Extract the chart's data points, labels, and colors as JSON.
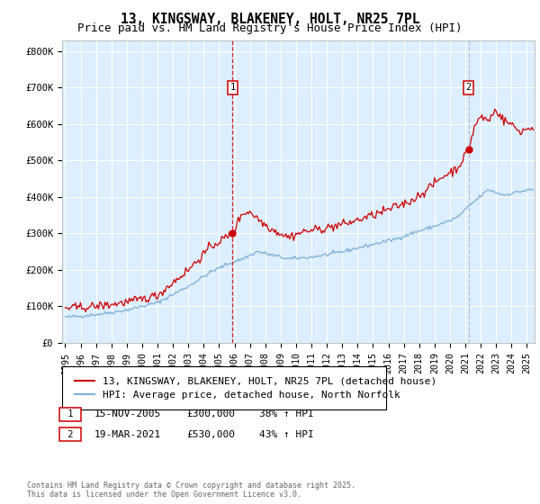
{
  "title": "13, KINGSWAY, BLAKENEY, HOLT, NR25 7PL",
  "subtitle": "Price paid vs. HM Land Registry's House Price Index (HPI)",
  "ylabel_ticks": [
    "£0",
    "£100K",
    "£200K",
    "£300K",
    "£400K",
    "£500K",
    "£600K",
    "£700K",
    "£800K"
  ],
  "ytick_values": [
    0,
    100000,
    200000,
    300000,
    400000,
    500000,
    600000,
    700000,
    800000
  ],
  "ylim": [
    0,
    830000
  ],
  "xlim_start": 1994.8,
  "xlim_end": 2025.5,
  "sale1_date": 2005.875,
  "sale1_price": 300000,
  "sale1_label": "1",
  "sale2_date": 2021.21,
  "sale2_price": 530000,
  "sale2_label": "2",
  "legend_line1": "13, KINGSWAY, BLAKENEY, HOLT, NR25 7PL (detached house)",
  "legend_line2": "HPI: Average price, detached house, North Norfolk",
  "sale1_date_str": "15-NOV-2005",
  "sale1_price_str": "£300,000",
  "sale1_hpi_str": "38% ↑ HPI",
  "sale2_date_str": "19-MAR-2021",
  "sale2_price_str": "£530,000",
  "sale2_hpi_str": "43% ↑ HPI",
  "footnote": "Contains HM Land Registry data © Crown copyright and database right 2025.\nThis data is licensed under the Open Government Licence v3.0.",
  "line_color_red": "#cc0000",
  "line_color_blue": "#7ab0d4",
  "vline1_color": "#cc0000",
  "vline2_color": "#aabbcc",
  "background_fill": "#ddeeff",
  "grid_color": "#ffffff",
  "title_fontsize": 10.5,
  "subtitle_fontsize": 9,
  "axis_fontsize": 7.5,
  "legend_fontsize": 8,
  "annotation_fontsize": 8
}
